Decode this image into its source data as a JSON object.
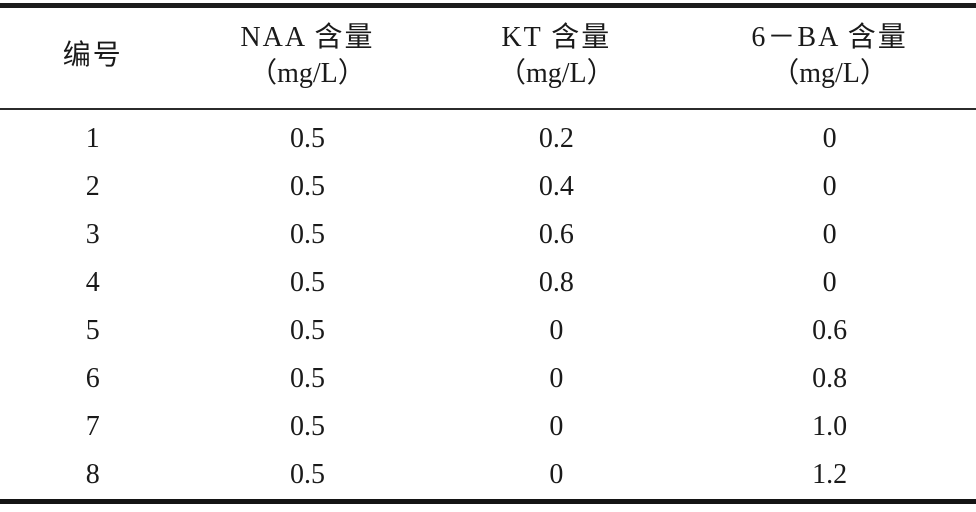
{
  "page": {
    "background_color": "#ffffff",
    "text_color": "#1a1a1a",
    "rule_color": "#1c1c1c"
  },
  "table": {
    "columns": [
      {
        "label": "编号",
        "unit": ""
      },
      {
        "label": "NAA 含量",
        "unit": "（mg/L）"
      },
      {
        "label": "KT 含量",
        "unit": "（mg/L）"
      },
      {
        "label": "6－BA 含量",
        "unit": "（mg/L）"
      }
    ],
    "rows": [
      [
        "1",
        "0.5",
        "0.2",
        "0"
      ],
      [
        "2",
        "0.5",
        "0.4",
        "0"
      ],
      [
        "3",
        "0.5",
        "0.6",
        "0"
      ],
      [
        "4",
        "0.5",
        "0.8",
        "0"
      ],
      [
        "5",
        "0.5",
        "0",
        "0.6"
      ],
      [
        "6",
        "0.5",
        "0",
        "0.8"
      ],
      [
        "7",
        "0.5",
        "0",
        "1.0"
      ],
      [
        "8",
        "0.5",
        "0",
        "1.2"
      ]
    ]
  },
  "chart_data": {
    "type": "table",
    "title": "",
    "columns": [
      "编号",
      "NAA 含量（mg/L）",
      "KT 含量（mg/L）",
      "6－BA 含量（mg/L）"
    ],
    "rows": [
      [
        1,
        0.5,
        0.2,
        0
      ],
      [
        2,
        0.5,
        0.4,
        0
      ],
      [
        3,
        0.5,
        0.6,
        0
      ],
      [
        4,
        0.5,
        0.8,
        0
      ],
      [
        5,
        0.5,
        0,
        0.6
      ],
      [
        6,
        0.5,
        0,
        0.8
      ],
      [
        7,
        0.5,
        0,
        1.0
      ],
      [
        8,
        0.5,
        0,
        1.2
      ]
    ]
  }
}
